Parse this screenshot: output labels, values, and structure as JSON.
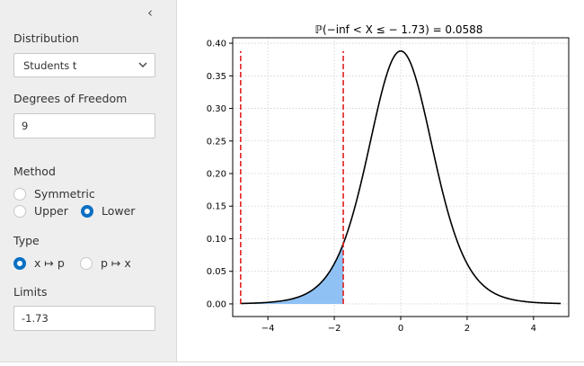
{
  "sidebar": {
    "collapse_glyph": "‹",
    "distribution": {
      "label": "Distribution",
      "value": "Students t"
    },
    "dof": {
      "label": "Degrees of Freedom",
      "value": "9"
    },
    "method": {
      "label": "Method",
      "options": [
        "Symmetric",
        "Upper",
        "Lower"
      ],
      "selected": "Lower"
    },
    "type": {
      "label": "Type",
      "options": [
        "x ↦ p",
        "p ↦ x"
      ],
      "selected": "x ↦ p"
    },
    "limits": {
      "label": "Limits",
      "value": "-1.73"
    }
  },
  "colors": {
    "accent": "#0a70c4",
    "fill": "#8fc1f4",
    "limit_line": "#e02020",
    "curve": "#000000"
  },
  "chart_data": {
    "type": "area",
    "title": "ℙ(−inf < X ≤ − 1.73) = 0.0588",
    "xlabel": "",
    "ylabel": "",
    "xlim": [
      -5.06,
      5.06
    ],
    "ylim": [
      -0.0194,
      0.4084
    ],
    "x_ticks": [
      -4,
      -2,
      0,
      2,
      4
    ],
    "x_tick_labels": [
      "−4",
      "−2",
      "0",
      "2",
      "4"
    ],
    "y_ticks": [
      0,
      0.05,
      0.1,
      0.15,
      0.2,
      0.25,
      0.3,
      0.35,
      0.4
    ],
    "y_tick_labels": [
      "0.00",
      "0.05",
      "0.10",
      "0.15",
      "0.20",
      "0.25",
      "0.30",
      "0.35",
      "0.40"
    ],
    "grid": true,
    "curve": {
      "distribution": "students-t",
      "df": 9,
      "x_range": [
        -4.82,
        4.82
      ]
    },
    "shaded_region": [
      -4.82,
      -1.73
    ],
    "vlines": [
      -4.82,
      -1.73
    ],
    "vline_top": 0.388,
    "probability": 0.0588
  }
}
